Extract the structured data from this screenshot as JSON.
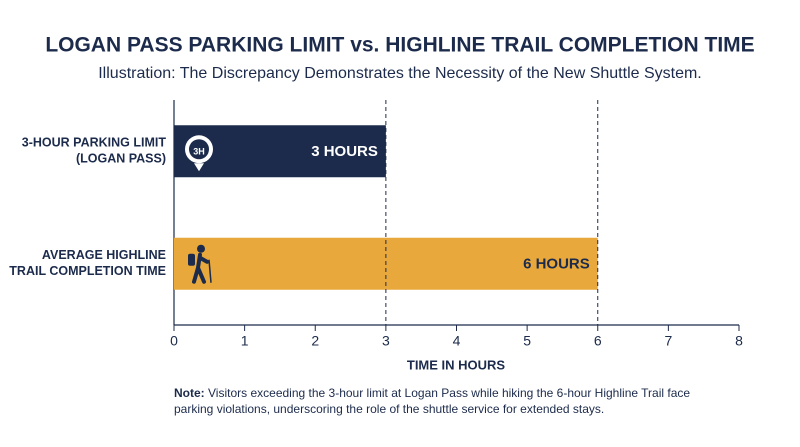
{
  "chart_data": {
    "type": "bar",
    "orientation": "horizontal",
    "title": "LOGAN PASS PARKING LIMIT vs. HIGHLINE TRAIL COMPLETION TIME",
    "subtitle": "Illustration: The Discrepancy Demonstrates the Necessity of the New Shuttle System.",
    "categories": [
      "3-HOUR PARKING LIMIT\n(LOGAN PASS)",
      "AVERAGE HIGHLINE\nTRAIL COMPLETION TIME"
    ],
    "values": [
      3,
      6
    ],
    "value_labels": [
      "3 HOURS",
      "6 HOURS"
    ],
    "colors": [
      "#1c2b4b",
      "#e8a83c"
    ],
    "parking_icon_label": "3H",
    "xlabel": "TIME IN HOURS",
    "xlim": [
      0,
      8
    ],
    "xticks": [
      0,
      1,
      2,
      3,
      4,
      5,
      6,
      7,
      8
    ],
    "reference_lines": [
      3,
      6
    ],
    "note_label": "Note:",
    "note": "Visitors exceeding the 3-hour limit at Logan Pass while hiking the 6-hour Highline Trail face parking violations, underscoring the role of the shuttle service for extended stays."
  }
}
